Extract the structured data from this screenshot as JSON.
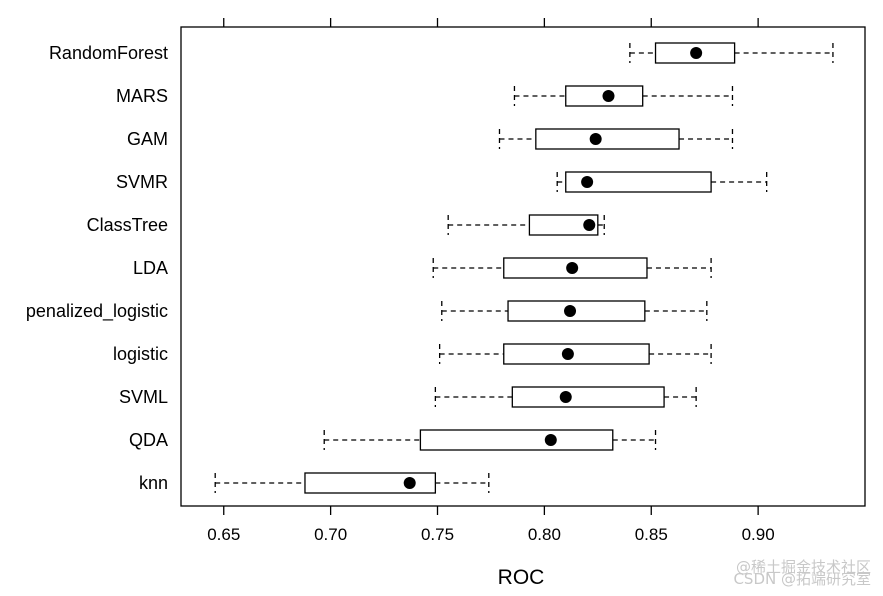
{
  "chart_data": {
    "type": "boxplot",
    "xlabel": "ROC",
    "xlim": [
      0.63,
      0.95
    ],
    "ticks": [
      "0.65",
      "0.70",
      "0.75",
      "0.80",
      "0.85",
      "0.90"
    ],
    "categories": [
      "RandomForest",
      "MARS",
      "GAM",
      "SVMR",
      "ClassTree",
      "LDA",
      "penalized_logistic",
      "logistic",
      "SVML",
      "QDA",
      "knn"
    ],
    "series": [
      {
        "category": "RandomForest",
        "min": 0.84,
        "q1": 0.852,
        "median": 0.871,
        "q3": 0.889,
        "max": 0.935
      },
      {
        "category": "MARS",
        "min": 0.786,
        "q1": 0.81,
        "median": 0.83,
        "q3": 0.846,
        "max": 0.888
      },
      {
        "category": "GAM",
        "min": 0.779,
        "q1": 0.796,
        "median": 0.824,
        "q3": 0.863,
        "max": 0.888
      },
      {
        "category": "SVMR",
        "min": 0.806,
        "q1": 0.81,
        "median": 0.82,
        "q3": 0.878,
        "max": 0.904
      },
      {
        "category": "ClassTree",
        "min": 0.755,
        "q1": 0.793,
        "median": 0.821,
        "q3": 0.825,
        "max": 0.828
      },
      {
        "category": "LDA",
        "min": 0.748,
        "q1": 0.781,
        "median": 0.813,
        "q3": 0.848,
        "max": 0.878
      },
      {
        "category": "penalized_logistic",
        "min": 0.752,
        "q1": 0.783,
        "median": 0.812,
        "q3": 0.847,
        "max": 0.876
      },
      {
        "category": "logistic",
        "min": 0.751,
        "q1": 0.781,
        "median": 0.811,
        "q3": 0.849,
        "max": 0.878
      },
      {
        "category": "SVML",
        "min": 0.749,
        "q1": 0.785,
        "median": 0.81,
        "q3": 0.856,
        "max": 0.871
      },
      {
        "category": "QDA",
        "min": 0.697,
        "q1": 0.742,
        "median": 0.803,
        "q3": 0.832,
        "max": 0.852
      },
      {
        "category": "knn",
        "min": 0.646,
        "q1": 0.688,
        "median": 0.737,
        "q3": 0.749,
        "max": 0.774
      }
    ]
  },
  "watermark": {
    "line1": "@稀土掘金技术社区",
    "line2": "CSDN @拓端研究室"
  }
}
